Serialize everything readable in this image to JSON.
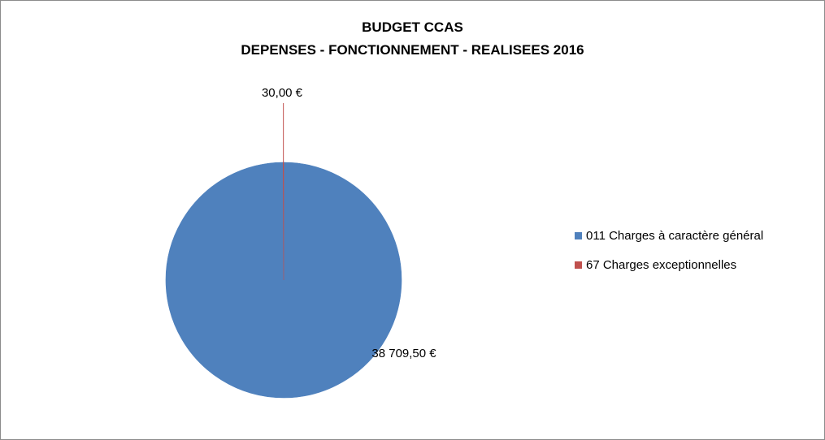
{
  "chart_data": {
    "type": "pie",
    "title": "BUDGET CCAS",
    "subtitle": "DEPENSES - FONCTIONNEMENT - REALISEES 2016",
    "slices": [
      {
        "name": "011 Charges à caractère général",
        "value": 38709.5,
        "label": "38 709,50 €",
        "color": "#4F81BD"
      },
      {
        "name": "67 Charges exceptionnelles",
        "value": 30.0,
        "label": "30,00 €",
        "color": "#C0504D"
      }
    ],
    "legend_position": "right"
  }
}
